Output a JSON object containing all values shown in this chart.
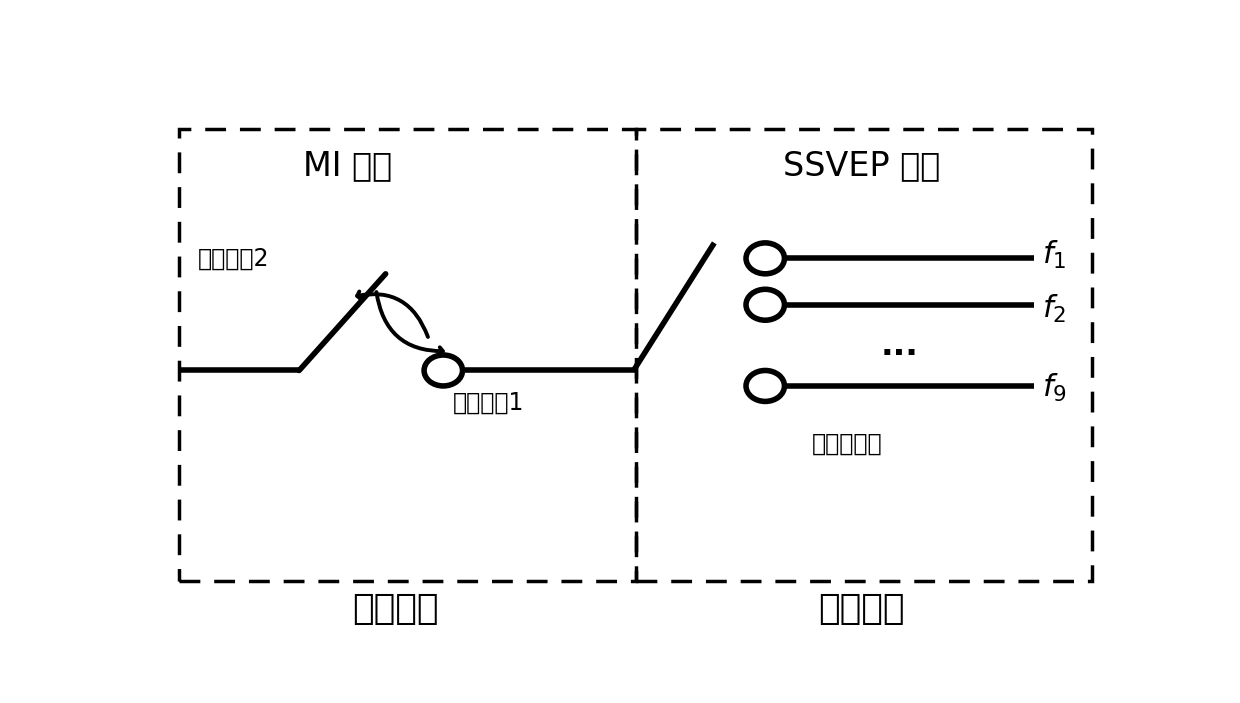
{
  "bg_color": "#ffffff",
  "box_color": "#000000",
  "line_color": "#000000",
  "text_color": "#000000",
  "title_MI": "MI 范式",
  "title_SSVEP": "SSVEP 范式",
  "label_switch": "开关模块",
  "label_multi": "多选模块",
  "label_MI1": "运动想豢1",
  "label_MI2": "运动想豢2",
  "label_multi_out": "多选一输出",
  "figsize": [
    12.4,
    7.03
  ],
  "dpi": 100
}
